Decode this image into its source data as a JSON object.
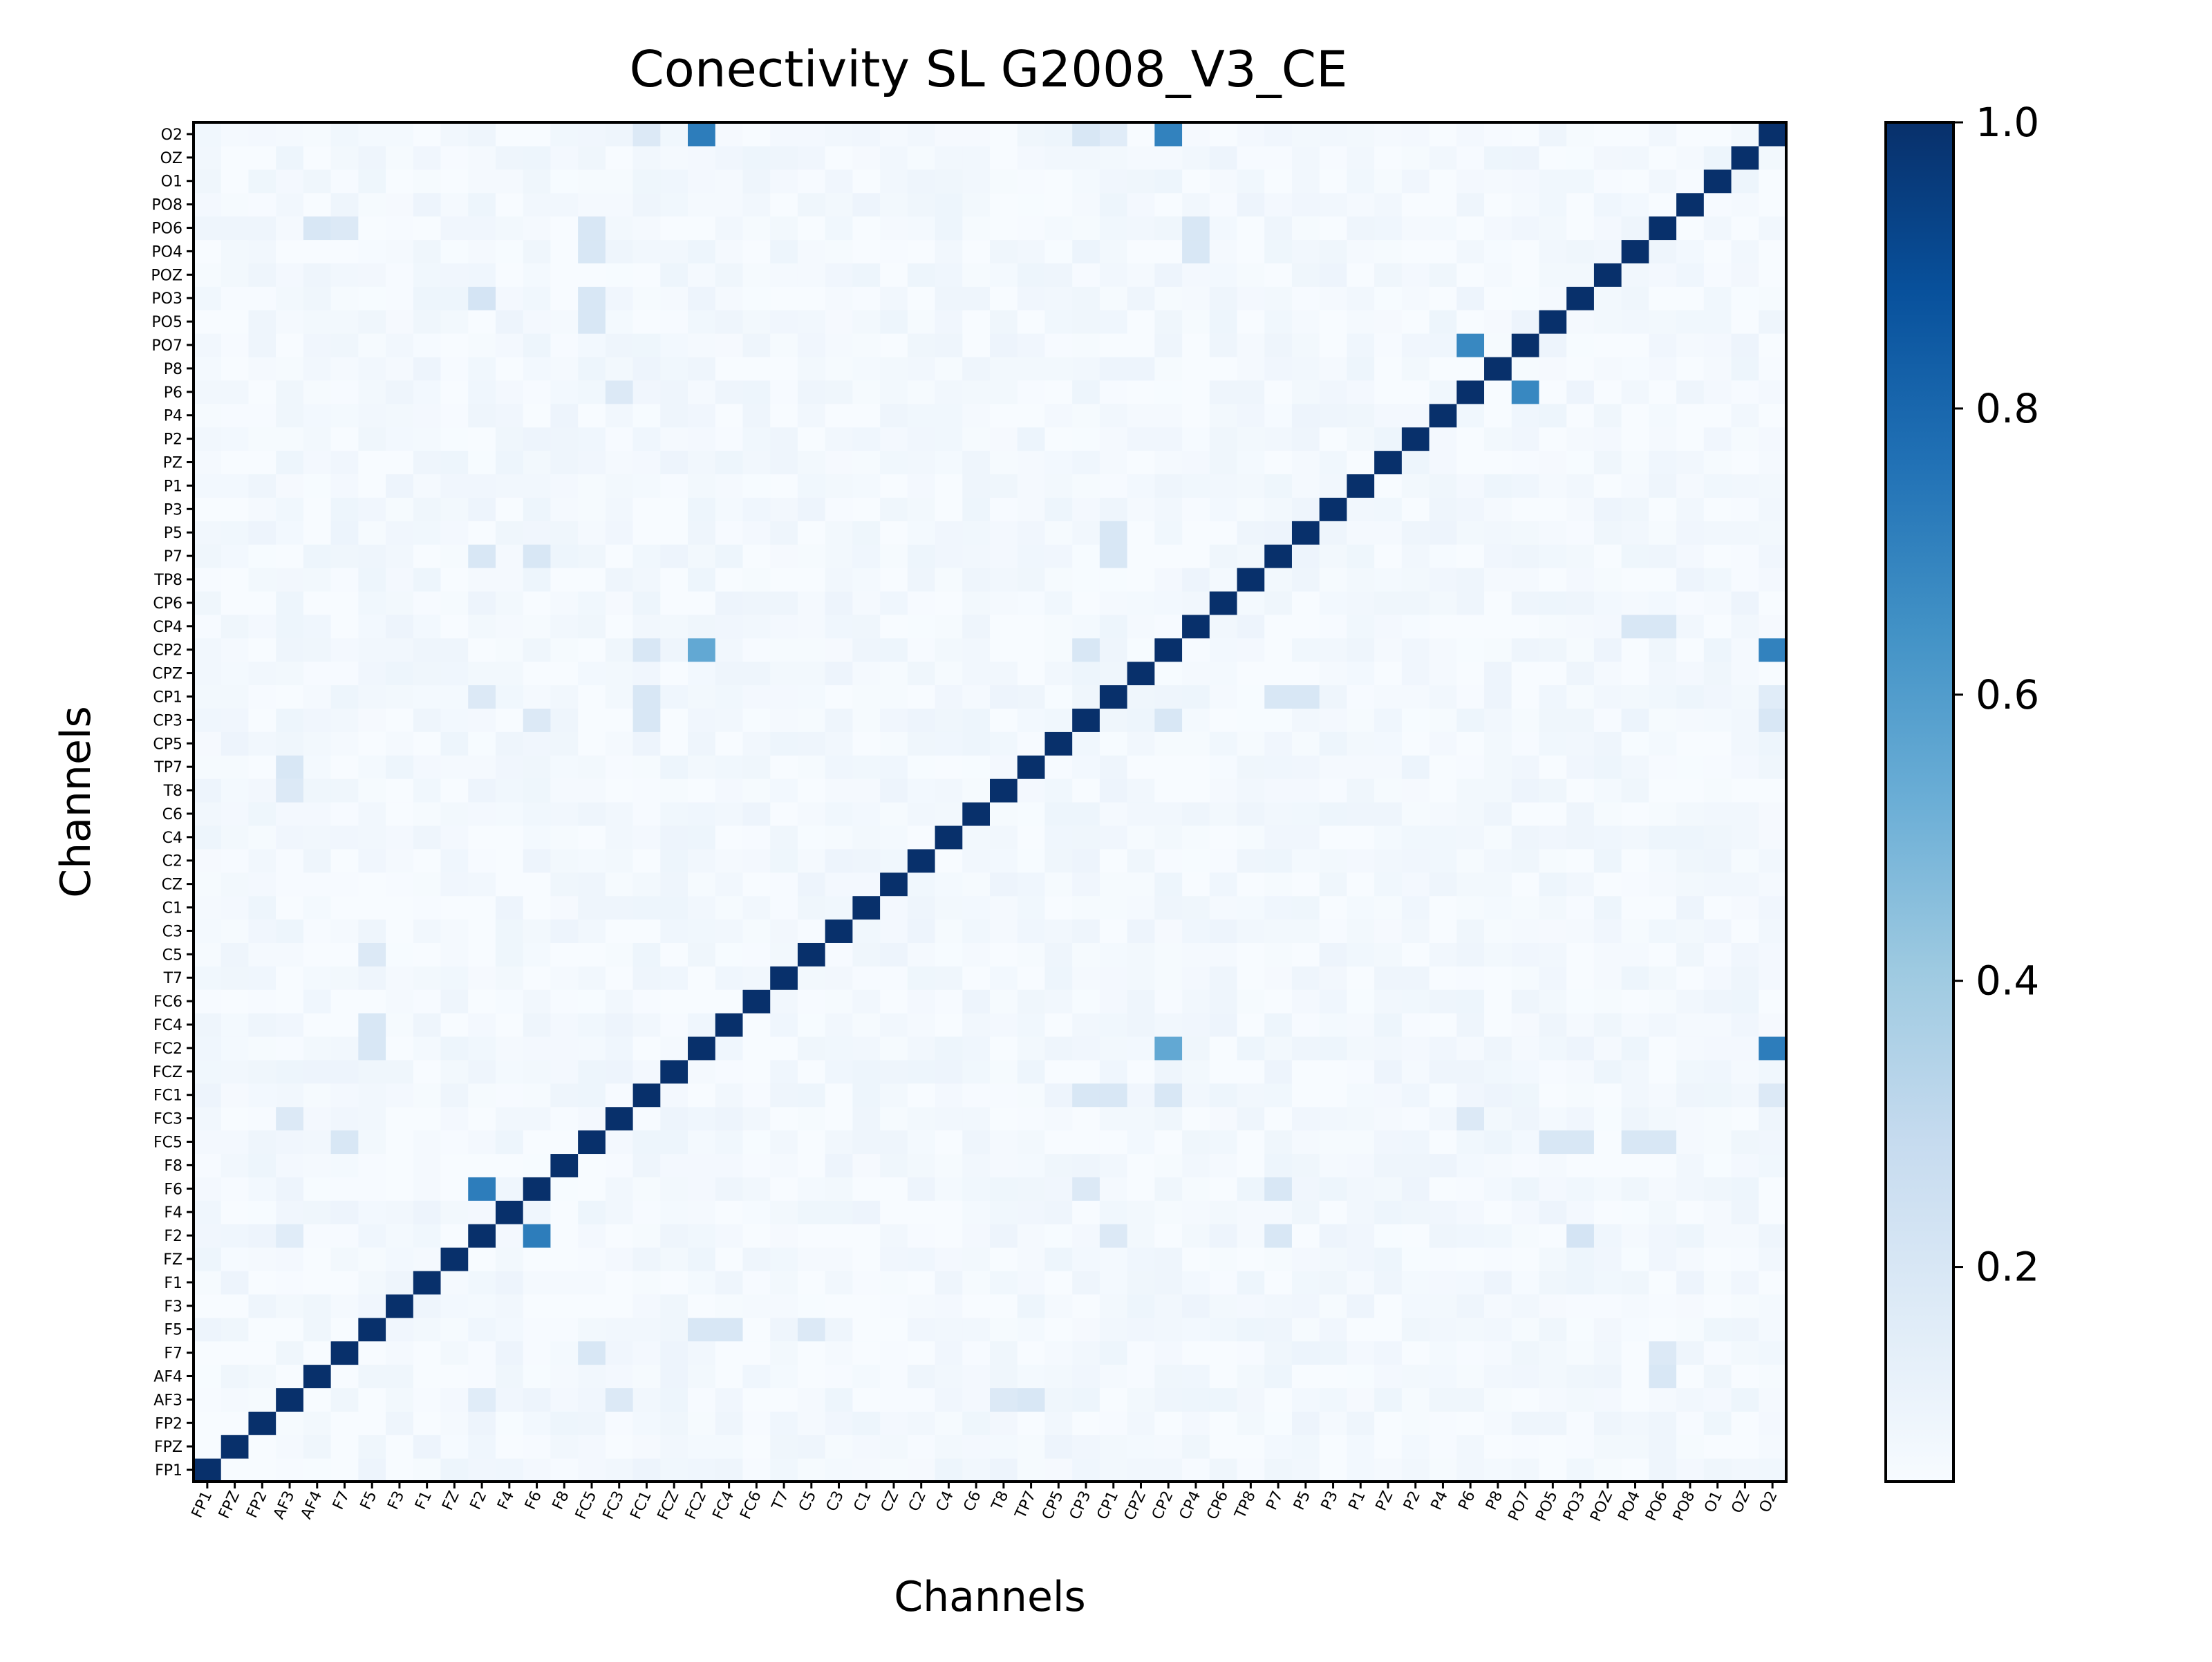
{
  "chart_data": {
    "type": "heatmap",
    "title": "Conectivity SL G2008_V3_CE",
    "xlabel": "Channels",
    "ylabel": "Channels",
    "channels": [
      "FP1",
      "FPZ",
      "FP2",
      "AF3",
      "AF4",
      "F7",
      "F5",
      "F3",
      "F1",
      "FZ",
      "F2",
      "F4",
      "F6",
      "F8",
      "FC5",
      "FC3",
      "FC1",
      "FCZ",
      "FC2",
      "FC4",
      "FC6",
      "T7",
      "C5",
      "C3",
      "C1",
      "CZ",
      "C2",
      "C4",
      "C6",
      "T8",
      "TP7",
      "CP5",
      "CP3",
      "CP1",
      "CPZ",
      "CP2",
      "CP4",
      "CP6",
      "TP8",
      "P7",
      "P5",
      "P3",
      "P1",
      "PZ",
      "P2",
      "P4",
      "P6",
      "P8",
      "PO7",
      "PO5",
      "PO3",
      "POZ",
      "PO4",
      "PO6",
      "PO8",
      "O1",
      "OZ",
      "O2"
    ],
    "colormap": "Blues",
    "color_range": [
      0.05,
      1.0
    ],
    "colorbar_ticks": [
      "0.2",
      "0.4",
      "0.6",
      "0.8",
      "1.0"
    ],
    "colorbar_tick_values": [
      0.2,
      0.4,
      0.6,
      0.8,
      1.0
    ],
    "diagonal_value": 1.0,
    "baseline_value": 0.07,
    "strong_pairs": [
      {
        "a": "F2",
        "b": "F6",
        "value": 0.72
      },
      {
        "a": "P6",
        "b": "PO7",
        "value": 0.68
      },
      {
        "a": "CP2",
        "b": "FC2",
        "value": 0.55
      },
      {
        "a": "CP2",
        "b": "O2",
        "value": 0.7
      },
      {
        "a": "FC2",
        "b": "O2",
        "value": 0.72
      }
    ],
    "moderate_pairs": [
      {
        "a": "AF3",
        "b": "T8",
        "value": 0.22
      },
      {
        "a": "AF3",
        "b": "FC3",
        "value": 0.18
      },
      {
        "a": "AF3",
        "b": "F2",
        "value": 0.16
      },
      {
        "a": "AF4",
        "b": "PO6",
        "value": 0.2
      },
      {
        "a": "F7",
        "b": "FC5",
        "value": 0.2
      },
      {
        "a": "F5",
        "b": "FC2",
        "value": 0.2
      },
      {
        "a": "F5",
        "b": "C5",
        "value": 0.18
      },
      {
        "a": "F6",
        "b": "CP3",
        "value": 0.18
      },
      {
        "a": "F6",
        "b": "P7",
        "value": 0.2
      },
      {
        "a": "F2",
        "b": "CP1",
        "value": 0.18
      },
      {
        "a": "F2",
        "b": "P7",
        "value": 0.2
      },
      {
        "a": "F2",
        "b": "PO3",
        "value": 0.22
      },
      {
        "a": "FC5",
        "b": "PO5",
        "value": 0.2
      },
      {
        "a": "FC5",
        "b": "PO4",
        "value": 0.2
      },
      {
        "a": "FC1",
        "b": "CP1",
        "value": 0.2
      },
      {
        "a": "FC1",
        "b": "CP3",
        "value": 0.2
      },
      {
        "a": "FC3",
        "b": "P6",
        "value": 0.18
      },
      {
        "a": "FC4",
        "b": "F5",
        "value": 0.2
      },
      {
        "a": "T8",
        "b": "AF3",
        "value": 0.18
      },
      {
        "a": "TP7",
        "b": "AF3",
        "value": 0.2
      },
      {
        "a": "CP1",
        "b": "P7",
        "value": 0.2
      },
      {
        "a": "CP2",
        "b": "FC1",
        "value": 0.2
      },
      {
        "a": "CP2",
        "b": "CP3",
        "value": 0.2
      },
      {
        "a": "CP4",
        "b": "PO4",
        "value": 0.2
      },
      {
        "a": "P5",
        "b": "CP1",
        "value": 0.2
      },
      {
        "a": "PO3",
        "b": "FC5",
        "value": 0.2
      },
      {
        "a": "PO6",
        "b": "CP4",
        "value": 0.2
      },
      {
        "a": "PO6",
        "b": "FC5",
        "value": 0.2
      },
      {
        "a": "PO6",
        "b": "F7",
        "value": 0.18
      },
      {
        "a": "O2",
        "b": "FC1",
        "value": 0.18
      },
      {
        "a": "O2",
        "b": "CP3",
        "value": 0.2
      },
      {
        "a": "O2",
        "b": "CP1",
        "value": 0.16
      }
    ]
  }
}
